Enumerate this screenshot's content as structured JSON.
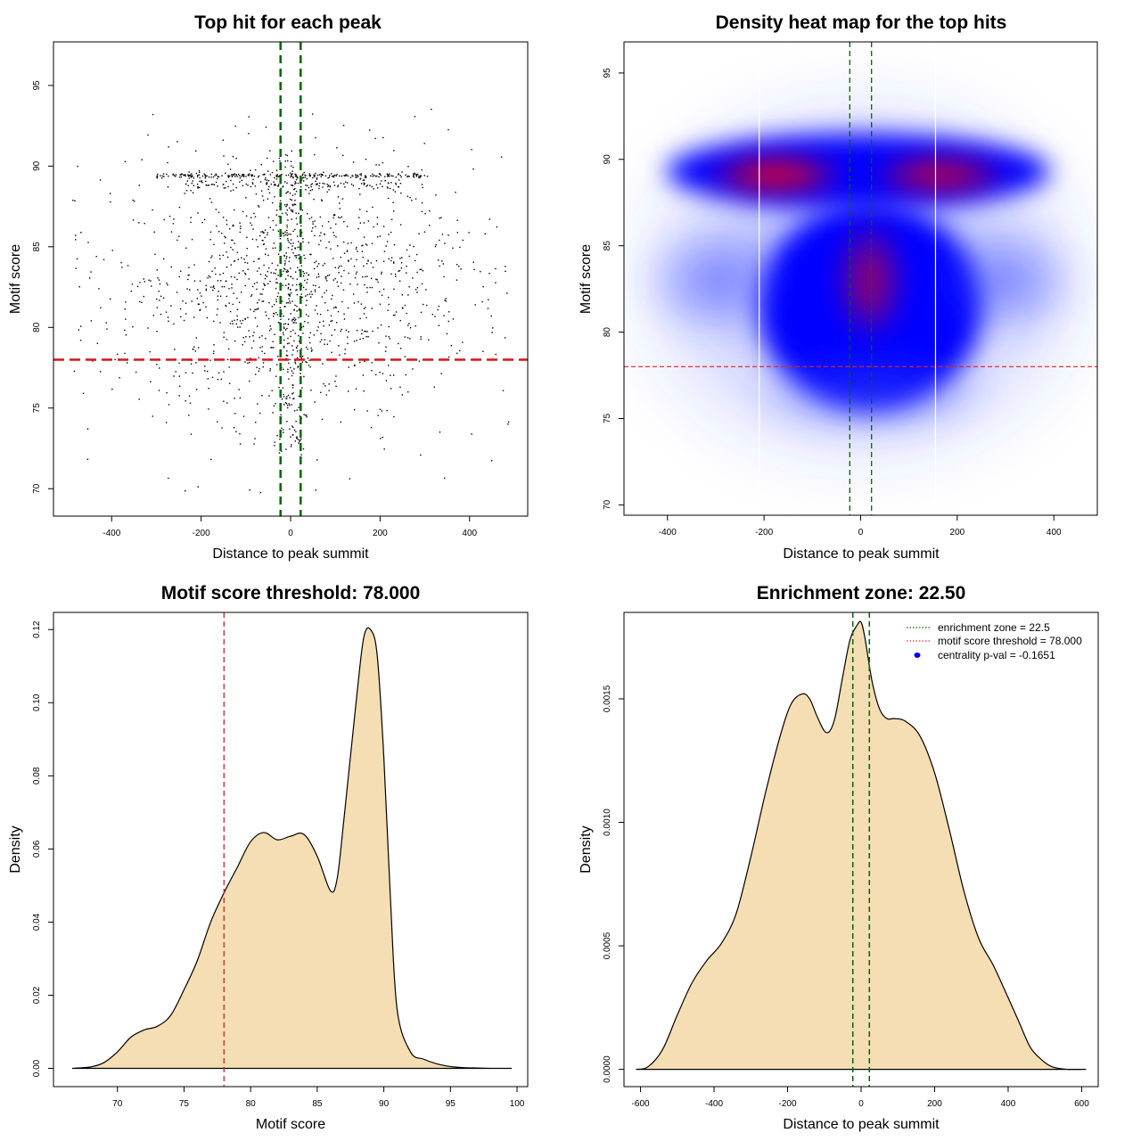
{
  "chart_data": [
    {
      "type": "scatter",
      "title": "Top hit for each peak",
      "xlabel": "Distance to peak summit",
      "ylabel": "Motif score",
      "xlim": [
        -530,
        530
      ],
      "ylim": [
        68.3,
        97.7
      ],
      "xticks": [
        -400,
        -200,
        0,
        200,
        400
      ],
      "yticks": [
        70,
        75,
        80,
        85,
        90,
        95
      ],
      "xtick_labels": [
        "-400",
        "-200",
        "0",
        "200",
        "400"
      ],
      "ytick_labels": [
        "70",
        "75",
        "80",
        "85",
        "90",
        "95"
      ],
      "points_description_count": 1800,
      "vlines": [
        -22.5,
        22.5
      ],
      "hline": 78,
      "hline_color": "#dd1111",
      "vline_color": "#006400",
      "point_color": "#000000"
    },
    {
      "type": "heatmap",
      "title": "Density heat map for the top hits",
      "xlabel": "Distance to peak summit",
      "ylabel": "Motif score",
      "xlim": [
        -490,
        490
      ],
      "ylim": [
        69.4,
        96.8
      ],
      "xticks": [
        -400,
        -200,
        0,
        200,
        400
      ],
      "yticks": [
        70,
        75,
        80,
        85,
        90,
        95
      ],
      "xtick_labels": [
        "-400",
        "-200",
        "0",
        "200",
        "400"
      ],
      "ytick_labels": [
        "70",
        "75",
        "80",
        "85",
        "90",
        "95"
      ],
      "white_vlines": [
        -210,
        155
      ],
      "vlines": [
        -22.5,
        22.5
      ],
      "hline": 78,
      "colors": [
        "#ffffff",
        "#0000ff",
        "#ff0000"
      ],
      "hotspots": [
        {
          "x": -175,
          "y": 89.1,
          "w": 1.0
        },
        {
          "x": 165,
          "y": 89.1,
          "w": 0.85
        },
        {
          "x": 20,
          "y": 83.0,
          "w": 0.6
        }
      ]
    },
    {
      "type": "area",
      "title": "Motif score threshold: 78.000",
      "xlabel": "Motif score",
      "ylabel": "Density",
      "xlim": [
        65.2,
        100.8
      ],
      "ylim": [
        -0.005,
        0.1247
      ],
      "xticks": [
        70,
        75,
        80,
        85,
        90,
        95,
        100
      ],
      "yticks": [
        0,
        0.02,
        0.04,
        0.06,
        0.08,
        0.1,
        0.12
      ],
      "xtick_labels": [
        "70",
        "75",
        "80",
        "85",
        "90",
        "95",
        "100"
      ],
      "ytick_labels": [
        "0.00",
        "0.02",
        "0.04",
        "0.06",
        "0.08",
        "0.10",
        "0.12"
      ],
      "x": [
        66.6,
        68,
        69,
        70,
        71,
        72,
        73,
        74,
        75,
        76,
        77,
        78,
        79,
        80,
        81,
        82,
        83,
        84,
        85,
        86,
        86.5,
        87,
        88,
        88.5,
        89,
        89.5,
        90,
        90.5,
        91,
        92,
        93,
        94,
        95,
        96,
        97,
        98,
        99.6
      ],
      "values": [
        0,
        0.0004,
        0.0016,
        0.0045,
        0.0085,
        0.0105,
        0.0115,
        0.0145,
        0.0215,
        0.0295,
        0.04,
        0.048,
        0.055,
        0.062,
        0.0645,
        0.0625,
        0.0635,
        0.064,
        0.058,
        0.0485,
        0.052,
        0.068,
        0.103,
        0.118,
        0.12,
        0.113,
        0.085,
        0.046,
        0.016,
        0.0045,
        0.0025,
        0.0012,
        0.0005,
        0.0002,
        0.0001,
        0,
        0
      ],
      "fill": "#f5deb3",
      "vline": 78,
      "vline_color": "#cc2222"
    },
    {
      "type": "area",
      "title": "Enrichment zone: 22.50",
      "xlabel": "Distance to peak summit",
      "ylabel": "Density",
      "xlim": [
        -645,
        645
      ],
      "ylim": [
        -7e-05,
        0.00185
      ],
      "xticks": [
        -600,
        -400,
        -200,
        0,
        200,
        400,
        600
      ],
      "yticks": [
        0,
        0.0005,
        0.001,
        0.0015
      ],
      "xtick_labels": [
        "-600",
        "-400",
        "-200",
        "0",
        "200",
        "400",
        "600"
      ],
      "ytick_labels": [
        "0.0000",
        "0.0005",
        "0.0010",
        "0.0015"
      ],
      "x": [
        -612,
        -580,
        -540,
        -500,
        -460,
        -420,
        -380,
        -340,
        -300,
        -260,
        -220,
        -190,
        -160,
        -140,
        -120,
        -100,
        -85,
        -70,
        -50,
        -30,
        -10,
        0,
        10,
        30,
        50,
        70,
        90,
        120,
        160,
        200,
        240,
        280,
        320,
        360,
        400,
        430,
        460,
        490,
        520,
        560,
        612
      ],
      "values": [
        0,
        1e-05,
        8e-05,
        0.00022,
        0.00035,
        0.00044,
        0.00051,
        0.00063,
        0.00086,
        0.00112,
        0.00135,
        0.00148,
        0.00152,
        0.0015,
        0.00143,
        0.00137,
        0.00137,
        0.00143,
        0.00159,
        0.00174,
        0.0018,
        0.00181,
        0.00175,
        0.00157,
        0.00146,
        0.00142,
        0.00142,
        0.00141,
        0.00135,
        0.0012,
        0.00097,
        0.00072,
        0.00053,
        0.00042,
        0.00029,
        0.00019,
        9e-05,
        4e-05,
        1e-05,
        0,
        0
      ],
      "fill": "#f5deb3",
      "vlines": [
        -22.5,
        22.5
      ],
      "vline_color": "#006400",
      "legend": [
        {
          "label": "enrichment zone = 22.5",
          "color": "#006400",
          "style": "dotted"
        },
        {
          "label": "motif score threshold = 78.000",
          "color": "#dd3333",
          "style": "dotted"
        },
        {
          "label": "centrality p-val = -0.1651",
          "color": "#0000ff",
          "style": "point"
        }
      ]
    }
  ]
}
